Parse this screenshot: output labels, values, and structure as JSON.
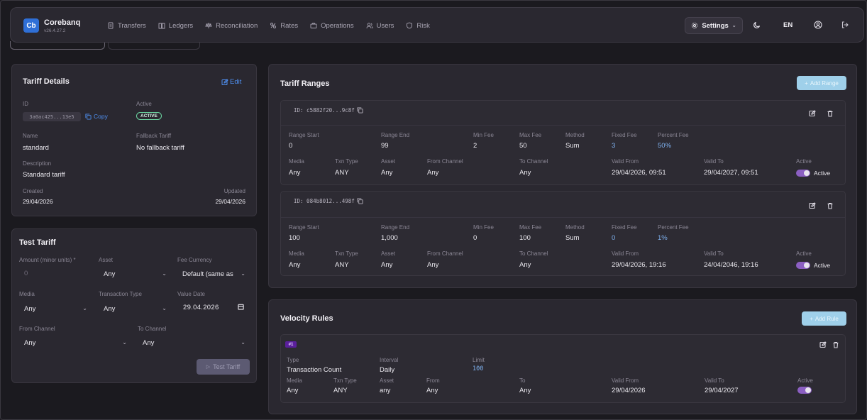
{
  "header": {
    "brand": "Corebanq",
    "version": "v26.4.27.2",
    "logo": "Cb",
    "nav": [
      {
        "label": "Transfers",
        "icon": "file-icon"
      },
      {
        "label": "Ledgers",
        "icon": "book-icon"
      },
      {
        "label": "Reconciliation",
        "icon": "scale-icon"
      },
      {
        "label": "Rates",
        "icon": "percent-icon"
      },
      {
        "label": "Operations",
        "icon": "briefcase-icon"
      },
      {
        "label": "Users",
        "icon": "users-icon"
      },
      {
        "label": "Risk",
        "icon": "shield-icon"
      }
    ],
    "settings_label": "Settings",
    "lang": "EN"
  },
  "tariff_details": {
    "title": "Tariff Details",
    "edit_label": "Edit",
    "id_label": "ID",
    "id_value": "3a0ac425...13e5",
    "copy_label": "Copy",
    "active_label": "Active",
    "active_badge": "ACTIVE",
    "name_label": "Name",
    "name_value": "standard",
    "fallback_label": "Fallback Tariff",
    "fallback_value": "No fallback tariff",
    "description_label": "Description",
    "description_value": "Standard tariff",
    "created_label": "Created",
    "created_value": "29/04/2026",
    "updated_label": "Updated",
    "updated_value": "29/04/2026"
  },
  "test_tariff": {
    "title": "Test Tariff",
    "amount_label": "Amount (minor units) *",
    "amount_placeholder": "0",
    "asset_label": "Asset",
    "asset_value": "Any",
    "fee_currency_label": "Fee Currency",
    "fee_currency_value": "Default (same as",
    "media_label": "Media",
    "media_value": "Any",
    "txn_type_label": "Transaction Type",
    "txn_type_value": "Any",
    "value_date_label": "Value Date",
    "value_date_value": "29.04.2026",
    "from_channel_label": "From Channel",
    "from_channel_value": "Any",
    "to_channel_label": "To Channel",
    "to_channel_value": "Any",
    "button_label": "Test Tariff"
  },
  "labels": {
    "range_start": "Range Start",
    "range_end": "Range End",
    "min_fee": "Min Fee",
    "max_fee": "Max Fee",
    "method": "Method",
    "fixed_fee": "Fixed Fee",
    "percent_fee": "Percent Fee",
    "media": "Media",
    "txn_type": "Txn Type",
    "asset": "Asset",
    "from_channel": "From Channel",
    "to_channel": "To Channel",
    "valid_from": "Valid From",
    "valid_to": "Valid To",
    "active": "Active",
    "type": "Type",
    "interval": "Interval",
    "limit": "Limit",
    "from": "From",
    "to": "To"
  },
  "tariff_ranges": {
    "title": "Tariff Ranges",
    "add_label": "Add Range",
    "items": [
      {
        "id": "ID: c5882f20...9c8f",
        "range_start": "0",
        "range_end": "99",
        "min_fee": "2",
        "max_fee": "50",
        "method": "Sum",
        "fixed_fee": "3",
        "percent_fee": "50%",
        "media": "Any",
        "txn_type": "ANY",
        "asset": "Any",
        "from_channel": "Any",
        "to_channel": "Any",
        "valid_from": "29/04/2026, 09:51",
        "valid_to": "29/04/2027, 09:51",
        "active_text": "Active"
      },
      {
        "id": "ID: 084b8012...498f",
        "range_start": "100",
        "range_end": "1,000",
        "min_fee": "0",
        "max_fee": "100",
        "method": "Sum",
        "fixed_fee": "0",
        "percent_fee": "1%",
        "media": "Any",
        "txn_type": "ANY",
        "asset": "Any",
        "from_channel": "Any",
        "to_channel": "Any",
        "valid_from": "29/04/2026, 19:16",
        "valid_to": "24/04/2046, 19:16",
        "active_text": "Active"
      }
    ]
  },
  "velocity_rules": {
    "title": "Velocity Rules",
    "add_label": "Add Rule",
    "items": [
      {
        "badge": "#1",
        "type": "Transaction Count",
        "interval": "Daily",
        "limit": "100",
        "media": "Any",
        "txn_type": "ANY",
        "asset": "any",
        "from": "Any",
        "to": "Any",
        "valid_from": "29/04/2026",
        "valid_to": "29/04/2027"
      }
    ]
  }
}
